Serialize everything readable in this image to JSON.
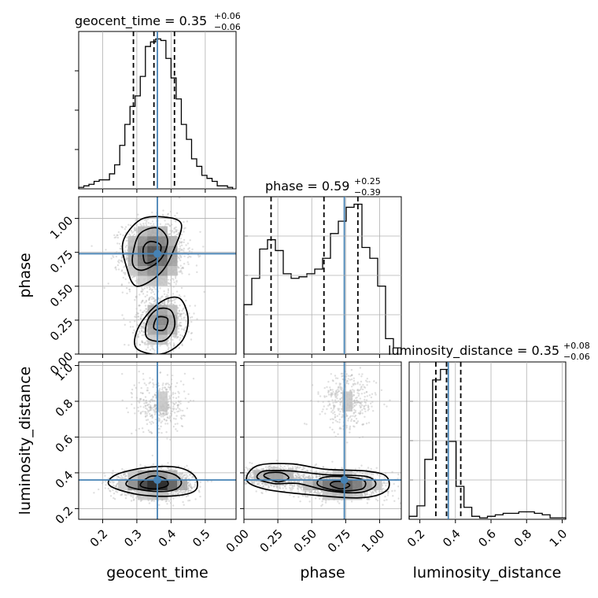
{
  "chart_data": {
    "type": "corner",
    "parameters": [
      "geocent_time",
      "phase",
      "luminosity_distance"
    ],
    "truths": {
      "geocent_time": 0.36,
      "phase": 0.74,
      "luminosity_distance": 0.36
    },
    "ranges": {
      "geocent_time": [
        0.13,
        0.59
      ],
      "phase": [
        0.0,
        1.16
      ],
      "luminosity_distance": [
        0.14,
        1.02
      ]
    },
    "ticks": {
      "geocent_time": [
        "0.2",
        "0.3",
        "0.4",
        "0.5"
      ],
      "phase": [
        "0.00",
        "0.25",
        "0.50",
        "0.75",
        "1.00"
      ],
      "luminosity_distance": [
        "0.2",
        "0.4",
        "0.6",
        "0.8",
        "1.0"
      ]
    },
    "tick_values": {
      "geocent_time": [
        0.2,
        0.3,
        0.4,
        0.5
      ],
      "phase": [
        0.0,
        0.25,
        0.5,
        0.75,
        1.0
      ],
      "luminosity_distance": [
        0.2,
        0.4,
        0.6,
        0.8,
        1.0
      ]
    },
    "titles": [
      {
        "parameter": "geocent_time",
        "main": "geocent_time = 0.35",
        "plus": "+0.06",
        "minus": "−0.06"
      },
      {
        "parameter": "phase",
        "main": "phase = 0.59",
        "plus": "+0.25",
        "minus": "−0.39"
      },
      {
        "parameter": "luminosity_distance",
        "main": "luminosity_distance = 0.35",
        "plus": "+0.08",
        "minus": "−0.06"
      }
    ],
    "quantiles": {
      "geocent_time": [
        0.29,
        0.35,
        0.41
      ],
      "phase": [
        0.2,
        0.59,
        0.84
      ],
      "luminosity_distance": [
        0.29,
        0.35,
        0.43
      ]
    },
    "histograms": {
      "geocent_time": {
        "edges": [
          0.13,
          0.145,
          0.16,
          0.175,
          0.19,
          0.205,
          0.22,
          0.235,
          0.25,
          0.265,
          0.28,
          0.295,
          0.31,
          0.325,
          0.34,
          0.355,
          0.37,
          0.385,
          0.4,
          0.415,
          0.43,
          0.445,
          0.46,
          0.475,
          0.49,
          0.505,
          0.52,
          0.535,
          0.55,
          0.565,
          0.58
        ],
        "counts": [
          0.01,
          0.02,
          0.03,
          0.05,
          0.06,
          0.06,
          0.1,
          0.16,
          0.29,
          0.43,
          0.55,
          0.62,
          0.75,
          0.95,
          0.98,
          1.0,
          0.99,
          0.87,
          0.74,
          0.6,
          0.43,
          0.33,
          0.2,
          0.15,
          0.09,
          0.07,
          0.05,
          0.02,
          0.02,
          0.01
        ]
      },
      "phase": {
        "edges": [
          0.0,
          0.058,
          0.116,
          0.174,
          0.232,
          0.29,
          0.348,
          0.406,
          0.464,
          0.522,
          0.58,
          0.638,
          0.696,
          0.754,
          0.812,
          0.87,
          0.928,
          0.986,
          1.044,
          1.102,
          1.16
        ],
        "counts": [
          0.32,
          0.49,
          0.68,
          0.74,
          0.67,
          0.52,
          0.49,
          0.5,
          0.52,
          0.55,
          0.62,
          0.78,
          0.86,
          0.95,
          0.97,
          0.69,
          0.62,
          0.44,
          0.1,
          0.04
        ]
      },
      "luminosity_distance": {
        "edges": [
          0.14,
          0.184,
          0.228,
          0.272,
          0.316,
          0.36,
          0.404,
          0.448,
          0.492,
          0.536,
          0.58,
          0.624,
          0.668,
          0.712,
          0.756,
          0.8,
          0.844,
          0.888,
          0.932,
          0.976,
          1.02
        ],
        "counts": [
          0.02,
          0.09,
          0.4,
          0.93,
          1.0,
          0.52,
          0.22,
          0.08,
          0.02,
          0.01,
          0.02,
          0.03,
          0.04,
          0.04,
          0.05,
          0.05,
          0.04,
          0.03,
          0.01,
          0.01
        ]
      }
    },
    "clusters": {
      "phase_vs_geocent_time": [
        {
          "mx": 0.35,
          "my": 0.74,
          "sx": 0.045,
          "sy": 0.12,
          "w": 0.62
        },
        {
          "mx": 0.37,
          "my": 0.24,
          "sx": 0.035,
          "sy": 0.1,
          "w": 0.38
        }
      ],
      "luminosity_distance_vs_geocent_time": [
        {
          "mx": 0.355,
          "my": 0.34,
          "sx": 0.05,
          "sy": 0.035,
          "w": 0.85
        },
        {
          "mx": 0.37,
          "my": 0.78,
          "sx": 0.035,
          "sy": 0.08,
          "w": 0.15
        }
      ],
      "luminosity_distance_vs_phase": [
        {
          "mx": 0.22,
          "my": 0.38,
          "sx": 0.12,
          "sy": 0.03,
          "w": 0.3
        },
        {
          "mx": 0.72,
          "my": 0.33,
          "sx": 0.16,
          "sy": 0.035,
          "w": 0.55
        },
        {
          "mx": 0.77,
          "my": 0.8,
          "sx": 0.1,
          "sy": 0.08,
          "w": 0.15
        }
      ]
    },
    "contours": {
      "phase_vs_geocent_time": [
        [
          [
            0.3,
            0.5
          ],
          [
            0.37,
            0.6
          ],
          [
            0.41,
            0.78
          ],
          [
            0.43,
            0.96
          ],
          [
            0.38,
            1.01
          ],
          [
            0.31,
            0.99
          ],
          [
            0.26,
            0.83
          ],
          [
            0.27,
            0.64
          ]
        ],
        [
          [
            0.32,
            0.62
          ],
          [
            0.37,
            0.7
          ],
          [
            0.39,
            0.84
          ],
          [
            0.36,
            0.93
          ],
          [
            0.31,
            0.89
          ],
          [
            0.29,
            0.76
          ],
          [
            0.29,
            0.65
          ]
        ],
        [
          [
            0.33,
            0.67
          ],
          [
            0.36,
            0.71
          ],
          [
            0.37,
            0.8
          ],
          [
            0.34,
            0.83
          ],
          [
            0.32,
            0.79
          ],
          [
            0.32,
            0.7
          ]
        ],
        [
          [
            0.3,
            0.04
          ],
          [
            0.37,
            0.0
          ],
          [
            0.43,
            0.09
          ],
          [
            0.45,
            0.25
          ],
          [
            0.43,
            0.4
          ],
          [
            0.39,
            0.41
          ],
          [
            0.34,
            0.32
          ],
          [
            0.3,
            0.17
          ]
        ],
        [
          [
            0.33,
            0.12
          ],
          [
            0.38,
            0.1
          ],
          [
            0.41,
            0.2
          ],
          [
            0.4,
            0.32
          ],
          [
            0.36,
            0.33
          ],
          [
            0.33,
            0.24
          ]
        ],
        [
          [
            0.35,
            0.19
          ],
          [
            0.38,
            0.18
          ],
          [
            0.39,
            0.26
          ],
          [
            0.36,
            0.27
          ]
        ]
      ],
      "luminosity_distance_vs_geocent_time": [
        [
          [
            0.22,
            0.33
          ],
          [
            0.3,
            0.28
          ],
          [
            0.4,
            0.27
          ],
          [
            0.47,
            0.3
          ],
          [
            0.47,
            0.38
          ],
          [
            0.42,
            0.43
          ],
          [
            0.33,
            0.43
          ],
          [
            0.24,
            0.39
          ]
        ],
        [
          [
            0.27,
            0.33
          ],
          [
            0.33,
            0.3
          ],
          [
            0.4,
            0.3
          ],
          [
            0.43,
            0.34
          ],
          [
            0.41,
            0.39
          ],
          [
            0.35,
            0.41
          ],
          [
            0.29,
            0.38
          ]
        ],
        [
          [
            0.31,
            0.33
          ],
          [
            0.35,
            0.31
          ],
          [
            0.39,
            0.33
          ],
          [
            0.38,
            0.37
          ],
          [
            0.34,
            0.38
          ]
        ]
      ],
      "luminosity_distance_vs_phase": [
        [
          [
            0.02,
            0.36
          ],
          [
            0.15,
            0.31
          ],
          [
            0.45,
            0.28
          ],
          [
            0.85,
            0.26
          ],
          [
            1.05,
            0.3
          ],
          [
            1.05,
            0.38
          ],
          [
            0.9,
            0.41
          ],
          [
            0.6,
            0.42
          ],
          [
            0.35,
            0.45
          ],
          [
            0.1,
            0.44
          ]
        ],
        [
          [
            0.1,
            0.37
          ],
          [
            0.22,
            0.34
          ],
          [
            0.4,
            0.34
          ],
          [
            0.62,
            0.3
          ],
          [
            0.85,
            0.29
          ],
          [
            0.97,
            0.33
          ],
          [
            0.9,
            0.38
          ],
          [
            0.6,
            0.39
          ],
          [
            0.35,
            0.41
          ],
          [
            0.15,
            0.41
          ]
        ],
        [
          [
            0.15,
            0.38
          ],
          [
            0.25,
            0.35
          ],
          [
            0.33,
            0.37
          ],
          [
            0.28,
            0.4
          ],
          [
            0.18,
            0.4
          ]
        ],
        [
          [
            0.55,
            0.33
          ],
          [
            0.7,
            0.3
          ],
          [
            0.87,
            0.31
          ],
          [
            0.88,
            0.36
          ],
          [
            0.7,
            0.38
          ],
          [
            0.57,
            0.37
          ]
        ],
        [
          [
            0.64,
            0.33
          ],
          [
            0.72,
            0.31
          ],
          [
            0.78,
            0.33
          ],
          [
            0.73,
            0.35
          ],
          [
            0.66,
            0.35
          ]
        ]
      ]
    },
    "grid": true
  }
}
